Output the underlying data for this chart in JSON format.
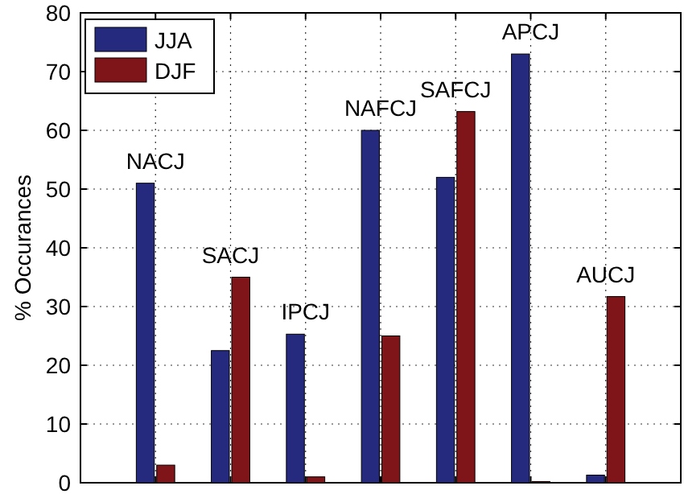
{
  "chart_data": {
    "type": "bar",
    "ylabel": "% Occurances",
    "categories": [
      null,
      null,
      null,
      null,
      null,
      null,
      null
    ],
    "ylim": [
      0,
      80
    ],
    "yticks": [
      0,
      10,
      20,
      30,
      40,
      50,
      60,
      70,
      80
    ],
    "grid": true,
    "legend": "top left",
    "series": [
      {
        "name": "JJA",
        "color": "#262a7e",
        "values": [
          51,
          22.5,
          25.3,
          60,
          52,
          73,
          1.3
        ]
      },
      {
        "name": "DJF",
        "color": "#7f1519",
        "values": [
          3,
          35,
          1,
          25,
          63.2,
          0.2,
          31.7
        ]
      }
    ],
    "annotations": [
      "NACJ",
      "SACJ",
      "IPCJ",
      "NAFCJ",
      "SAFCJ",
      "APCJ",
      "AUCJ"
    ]
  }
}
